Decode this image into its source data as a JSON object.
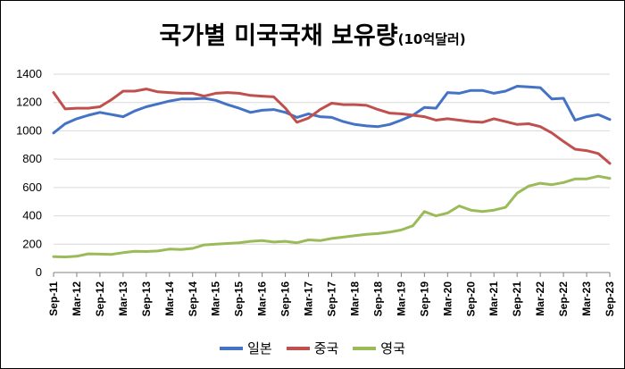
{
  "title": "국가별 미국국채 보유량",
  "title_unit": "(10억달러)",
  "chart_data": {
    "type": "line",
    "title": "국가별 미국국채 보유량 (10억달러)",
    "xlabel": "",
    "ylabel": "",
    "ylim": [
      0,
      1400
    ],
    "yticks": [
      0,
      200,
      400,
      600,
      800,
      1000,
      1200,
      1400
    ],
    "grid": "horizontal",
    "legend_position": "bottom",
    "x_tick_labels": [
      "Sep-11",
      "Mar-12",
      "Sep-12",
      "Mar-13",
      "Sep-13",
      "Mar-14",
      "Sep-14",
      "Mar-15",
      "Sep-15",
      "Mar-16",
      "Sep-16",
      "Mar-17",
      "Sep-17",
      "Mar-18",
      "Sep-18",
      "Mar-19",
      "Sep-19",
      "Mar-20",
      "Sep-20",
      "Mar-21",
      "Sep-21",
      "Mar-22",
      "Sep-22",
      "Mar-23",
      "Sep-23"
    ],
    "series": [
      {
        "name": "일본",
        "color": "#4472C4",
        "points": [
          [
            "2011-09",
            985
          ],
          [
            "2011-12",
            1050
          ],
          [
            "2012-03",
            1085
          ],
          [
            "2012-06",
            1110
          ],
          [
            "2012-09",
            1130
          ],
          [
            "2012-12",
            1115
          ],
          [
            "2013-03",
            1100
          ],
          [
            "2013-06",
            1140
          ],
          [
            "2013-09",
            1170
          ],
          [
            "2013-12",
            1190
          ],
          [
            "2014-03",
            1210
          ],
          [
            "2014-06",
            1225
          ],
          [
            "2014-09",
            1225
          ],
          [
            "2014-12",
            1230
          ],
          [
            "2015-03",
            1215
          ],
          [
            "2015-06",
            1185
          ],
          [
            "2015-09",
            1160
          ],
          [
            "2015-12",
            1130
          ],
          [
            "2016-03",
            1145
          ],
          [
            "2016-06",
            1150
          ],
          [
            "2016-09",
            1130
          ],
          [
            "2016-12",
            1095
          ],
          [
            "2017-03",
            1120
          ],
          [
            "2017-06",
            1100
          ],
          [
            "2017-09",
            1095
          ],
          [
            "2017-12",
            1065
          ],
          [
            "2018-03",
            1045
          ],
          [
            "2018-06",
            1035
          ],
          [
            "2018-09",
            1030
          ],
          [
            "2018-12",
            1045
          ],
          [
            "2019-03",
            1075
          ],
          [
            "2019-06",
            1110
          ],
          [
            "2019-09",
            1165
          ],
          [
            "2019-12",
            1160
          ],
          [
            "2020-03",
            1270
          ],
          [
            "2020-06",
            1265
          ],
          [
            "2020-09",
            1285
          ],
          [
            "2020-12",
            1285
          ],
          [
            "2021-03",
            1265
          ],
          [
            "2021-06",
            1280
          ],
          [
            "2021-09",
            1315
          ],
          [
            "2021-12",
            1310
          ],
          [
            "2022-03",
            1305
          ],
          [
            "2022-06",
            1225
          ],
          [
            "2022-09",
            1230
          ],
          [
            "2022-12",
            1075
          ],
          [
            "2023-03",
            1100
          ],
          [
            "2023-06",
            1115
          ],
          [
            "2023-09",
            1080
          ]
        ]
      },
      {
        "name": "중국",
        "color": "#C0504D",
        "points": [
          [
            "2011-09",
            1270
          ],
          [
            "2011-12",
            1155
          ],
          [
            "2012-03",
            1160
          ],
          [
            "2012-06",
            1160
          ],
          [
            "2012-09",
            1170
          ],
          [
            "2012-12",
            1220
          ],
          [
            "2013-03",
            1280
          ],
          [
            "2013-06",
            1280
          ],
          [
            "2013-09",
            1295
          ],
          [
            "2013-12",
            1275
          ],
          [
            "2014-03",
            1270
          ],
          [
            "2014-06",
            1265
          ],
          [
            "2014-09",
            1265
          ],
          [
            "2014-12",
            1245
          ],
          [
            "2015-03",
            1265
          ],
          [
            "2015-06",
            1270
          ],
          [
            "2015-09",
            1265
          ],
          [
            "2015-12",
            1250
          ],
          [
            "2016-03",
            1245
          ],
          [
            "2016-06",
            1240
          ],
          [
            "2016-09",
            1160
          ],
          [
            "2016-12",
            1060
          ],
          [
            "2017-03",
            1090
          ],
          [
            "2017-06",
            1150
          ],
          [
            "2017-09",
            1195
          ],
          [
            "2017-12",
            1185
          ],
          [
            "2018-03",
            1185
          ],
          [
            "2018-06",
            1180
          ],
          [
            "2018-09",
            1150
          ],
          [
            "2018-12",
            1125
          ],
          [
            "2019-03",
            1120
          ],
          [
            "2019-06",
            1110
          ],
          [
            "2019-09",
            1100
          ],
          [
            "2019-12",
            1075
          ],
          [
            "2020-03",
            1085
          ],
          [
            "2020-06",
            1075
          ],
          [
            "2020-09",
            1065
          ],
          [
            "2020-12",
            1060
          ],
          [
            "2021-03",
            1085
          ],
          [
            "2021-06",
            1065
          ],
          [
            "2021-09",
            1045
          ],
          [
            "2021-12",
            1050
          ],
          [
            "2022-03",
            1030
          ],
          [
            "2022-06",
            985
          ],
          [
            "2022-09",
            925
          ],
          [
            "2022-12",
            870
          ],
          [
            "2023-03",
            860
          ],
          [
            "2023-06",
            840
          ],
          [
            "2023-09",
            770
          ]
        ]
      },
      {
        "name": "영국",
        "color": "#9BBB59",
        "points": [
          [
            "2011-09",
            112
          ],
          [
            "2011-12",
            110
          ],
          [
            "2012-03",
            115
          ],
          [
            "2012-06",
            132
          ],
          [
            "2012-09",
            130
          ],
          [
            "2012-12",
            128
          ],
          [
            "2013-03",
            140
          ],
          [
            "2013-06",
            150
          ],
          [
            "2013-09",
            148
          ],
          [
            "2013-12",
            152
          ],
          [
            "2014-03",
            165
          ],
          [
            "2014-06",
            162
          ],
          [
            "2014-09",
            170
          ],
          [
            "2014-12",
            195
          ],
          [
            "2015-03",
            200
          ],
          [
            "2015-06",
            205
          ],
          [
            "2015-09",
            210
          ],
          [
            "2015-12",
            220
          ],
          [
            "2016-03",
            225
          ],
          [
            "2016-06",
            215
          ],
          [
            "2016-09",
            220
          ],
          [
            "2016-12",
            210
          ],
          [
            "2017-03",
            230
          ],
          [
            "2017-06",
            225
          ],
          [
            "2017-09",
            240
          ],
          [
            "2017-12",
            250
          ],
          [
            "2018-03",
            260
          ],
          [
            "2018-06",
            270
          ],
          [
            "2018-09",
            275
          ],
          [
            "2018-12",
            285
          ],
          [
            "2019-03",
            300
          ],
          [
            "2019-06",
            330
          ],
          [
            "2019-09",
            430
          ],
          [
            "2019-12",
            400
          ],
          [
            "2020-03",
            420
          ],
          [
            "2020-06",
            470
          ],
          [
            "2020-09",
            440
          ],
          [
            "2020-12",
            430
          ],
          [
            "2021-03",
            440
          ],
          [
            "2021-06",
            460
          ],
          [
            "2021-09",
            560
          ],
          [
            "2021-12",
            610
          ],
          [
            "2022-03",
            630
          ],
          [
            "2022-06",
            620
          ],
          [
            "2022-09",
            635
          ],
          [
            "2022-12",
            660
          ],
          [
            "2023-03",
            660
          ],
          [
            "2023-06",
            680
          ],
          [
            "2023-09",
            665
          ]
        ]
      }
    ]
  }
}
